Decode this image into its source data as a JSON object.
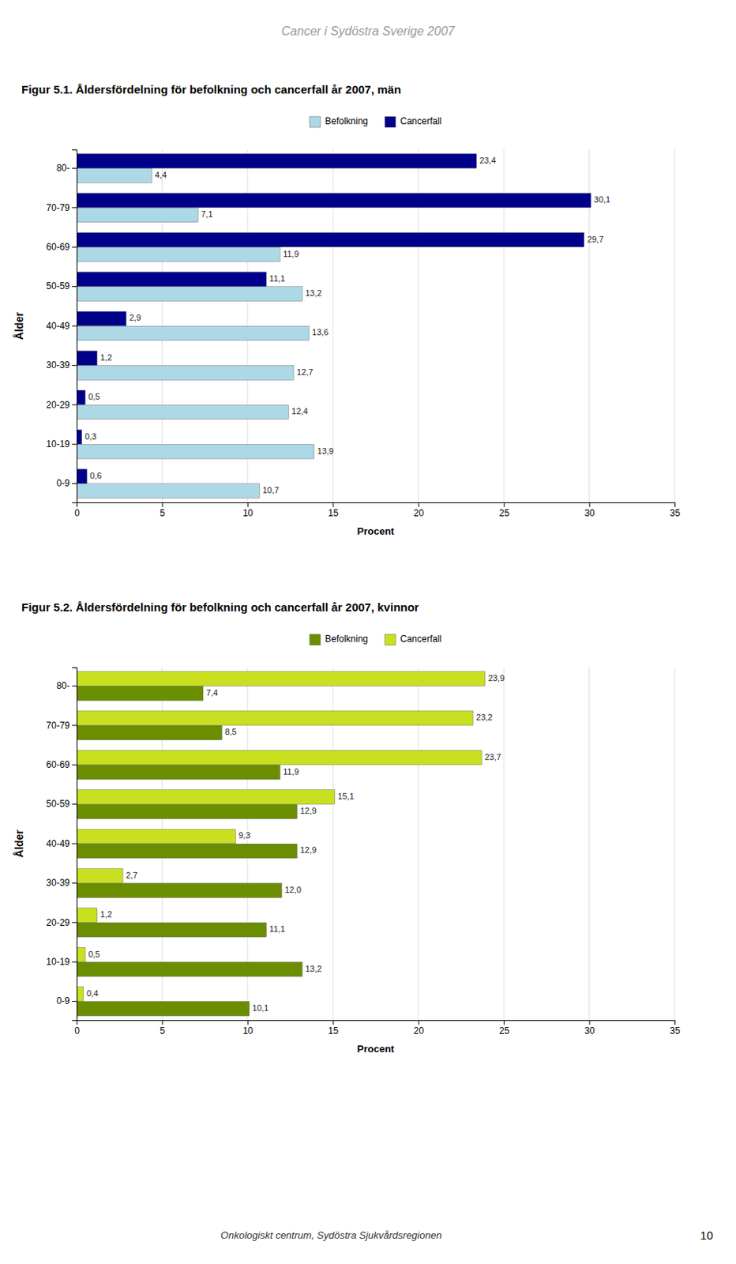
{
  "header": "Cancer i Sydöstra Sverige 2007",
  "footer": "Onkologiskt centrum, Sydöstra Sjukvårdsregionen",
  "page_number": "10",
  "chart_data": [
    {
      "type": "bar",
      "orientation": "horizontal",
      "title": "Figur 5.1. Åldersfördelning för befolkning och cancerfall år 2007, män",
      "xlabel": "Procent",
      "ylabel": "Ålder",
      "categories": [
        "80-",
        "70-79",
        "60-69",
        "50-59",
        "40-49",
        "30-39",
        "20-29",
        "10-19",
        "0-9"
      ],
      "series": [
        {
          "name": "Befolkning",
          "color": "#add8e6",
          "values": [
            4.4,
            7.1,
            11.9,
            13.2,
            13.6,
            12.7,
            12.4,
            13.9,
            10.7
          ],
          "value_labels": [
            "4,4",
            "7,1",
            "11,9",
            "13,2",
            "13,6",
            "12,7",
            "12,4",
            "13,9",
            "10,7"
          ]
        },
        {
          "name": "Cancerfall",
          "color": "#00008b",
          "values": [
            23.4,
            30.1,
            29.7,
            11.1,
            2.9,
            1.2,
            0.5,
            0.3,
            0.6
          ],
          "value_labels": [
            "23,4",
            "30,1",
            "29,7",
            "11,1",
            "2,9",
            "1,2",
            "0,5",
            "0,3",
            "0,6"
          ]
        }
      ],
      "xlim": [
        0,
        35
      ],
      "xticks": [
        0,
        5,
        10,
        15,
        20,
        25,
        30,
        35
      ],
      "grid": true,
      "legend": "top",
      "data_labels": true
    },
    {
      "type": "bar",
      "orientation": "horizontal",
      "title": "Figur 5.2. Åldersfördelning för befolkning och cancerfall år 2007, kvinnor",
      "xlabel": "Procent",
      "ylabel": "Ålder",
      "categories": [
        "80-",
        "70-79",
        "60-69",
        "50-59",
        "40-49",
        "30-39",
        "20-29",
        "10-19",
        "0-9"
      ],
      "series": [
        {
          "name": "Befolkning",
          "color": "#6b8e00",
          "values": [
            7.4,
            8.5,
            11.9,
            12.9,
            12.9,
            12.0,
            11.1,
            13.2,
            10.1
          ],
          "value_labels": [
            "7,4",
            "8,5",
            "11,9",
            "12,9",
            "12,9",
            "12,0",
            "11,1",
            "13,2",
            "10,1"
          ]
        },
        {
          "name": "Cancerfall",
          "color": "#c8e020",
          "values": [
            23.9,
            23.2,
            23.7,
            15.1,
            9.3,
            2.7,
            1.2,
            0.5,
            0.4
          ],
          "value_labels": [
            "23,9",
            "23,2",
            "23,7",
            "15,1",
            "9,3",
            "2,7",
            "1,2",
            "0,5",
            "0,4"
          ]
        }
      ],
      "xlim": [
        0,
        35
      ],
      "xticks": [
        0,
        5,
        10,
        15,
        20,
        25,
        30,
        35
      ],
      "grid": true,
      "legend": "top",
      "data_labels": true
    }
  ]
}
